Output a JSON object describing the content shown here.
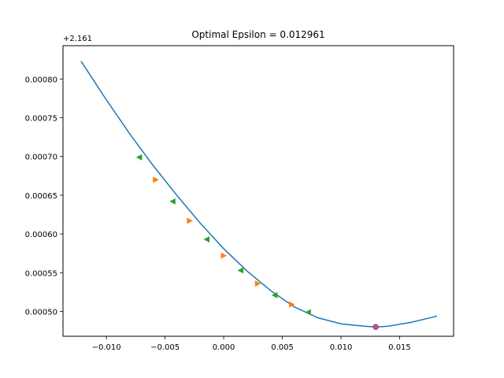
{
  "chart_data": {
    "type": "line",
    "title": "Optimal Epsilon = 0.012961",
    "y_offset_label": "+2.161",
    "xlabel": "",
    "ylabel": "",
    "xlim": [
      -0.0137,
      0.0196
    ],
    "ylim": [
      0.000468,
      0.000843
    ],
    "x_ticks": [
      -0.01,
      -0.005,
      0.0,
      0.005,
      0.01,
      0.015
    ],
    "x_tick_labels": [
      "−0.010",
      "−0.005",
      "0.000",
      "0.005",
      "0.010",
      "0.015"
    ],
    "y_ticks": [
      0.0005,
      0.00055,
      0.0006,
      0.00065,
      0.0007,
      0.00075,
      0.0008
    ],
    "y_tick_labels": [
      "0.00050",
      "0.00055",
      "0.00060",
      "0.00065",
      "0.00070",
      "0.00075",
      "0.00080"
    ],
    "grid": false,
    "curve": {
      "color": "#1f77b4",
      "x": [
        -0.01216,
        -0.01,
        -0.008,
        -0.006,
        -0.004,
        -0.002,
        0.0,
        0.002,
        0.004,
        0.006,
        0.008,
        0.01,
        0.012,
        0.013,
        0.014,
        0.016,
        0.01819
      ],
      "y": [
        0.000823,
        0.000773,
        0.000729,
        0.000688,
        0.00065,
        0.000614,
        0.000581,
        0.000552,
        0.000527,
        0.000506,
        0.000492,
        0.000484,
        0.000481,
        0.00048,
        0.000481,
        0.000486,
        0.000494
      ]
    },
    "markers_left": {
      "color": "#2ca02c",
      "shape": "triangle-left",
      "x": [
        -0.0072,
        -0.00435,
        -0.00145,
        0.00145,
        0.00435,
        0.0072
      ],
      "y": [
        0.000699,
        0.000642,
        0.000593,
        0.000553,
        0.000521,
        0.000499
      ]
    },
    "markers_right": {
      "color": "#ff7f0e",
      "shape": "triangle-right",
      "x": [
        -0.0058,
        -0.0029,
        0.0,
        0.0029,
        0.0058
      ],
      "y": [
        0.00067,
        0.000617,
        0.000572,
        0.000536,
        0.000509
      ]
    },
    "optimum": {
      "x": 0.012961,
      "y": 0.00048,
      "color": "#d62728",
      "overlay_color": "#9467bd"
    }
  }
}
